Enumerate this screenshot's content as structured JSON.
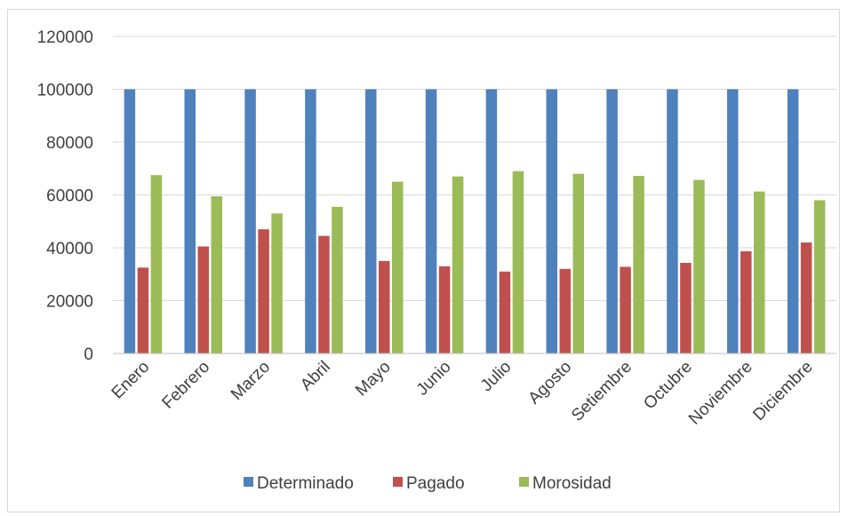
{
  "chart_data": {
    "type": "bar",
    "title": "",
    "xlabel": "",
    "ylabel": "",
    "ylim": [
      0,
      120000
    ],
    "yticks": [
      0,
      20000,
      40000,
      60000,
      80000,
      100000,
      120000
    ],
    "grid": true,
    "legend_position": "bottom",
    "categories": [
      "Enero",
      "Febrero",
      "Marzo",
      "Abril",
      "Mayo",
      "Junio",
      "Julio",
      "Agosto",
      "Setiembre",
      "Octubre",
      "Noviembre",
      "Diciembre"
    ],
    "series": [
      {
        "name": "Determinado",
        "color": "#4f81bd",
        "values": [
          100000,
          100000,
          100000,
          100000,
          100000,
          100000,
          100000,
          100000,
          100000,
          100000,
          100000,
          100000
        ]
      },
      {
        "name": "Pagado",
        "color": "#c0504d",
        "values": [
          32500,
          40500,
          47000,
          44500,
          35000,
          33000,
          31000,
          32000,
          32800,
          34300,
          38700,
          42000
        ]
      },
      {
        "name": "Morosidad",
        "color": "#9bbb59",
        "values": [
          67500,
          59500,
          53000,
          55500,
          65000,
          67000,
          69000,
          68000,
          67200,
          65700,
          61300,
          58000
        ]
      }
    ]
  }
}
